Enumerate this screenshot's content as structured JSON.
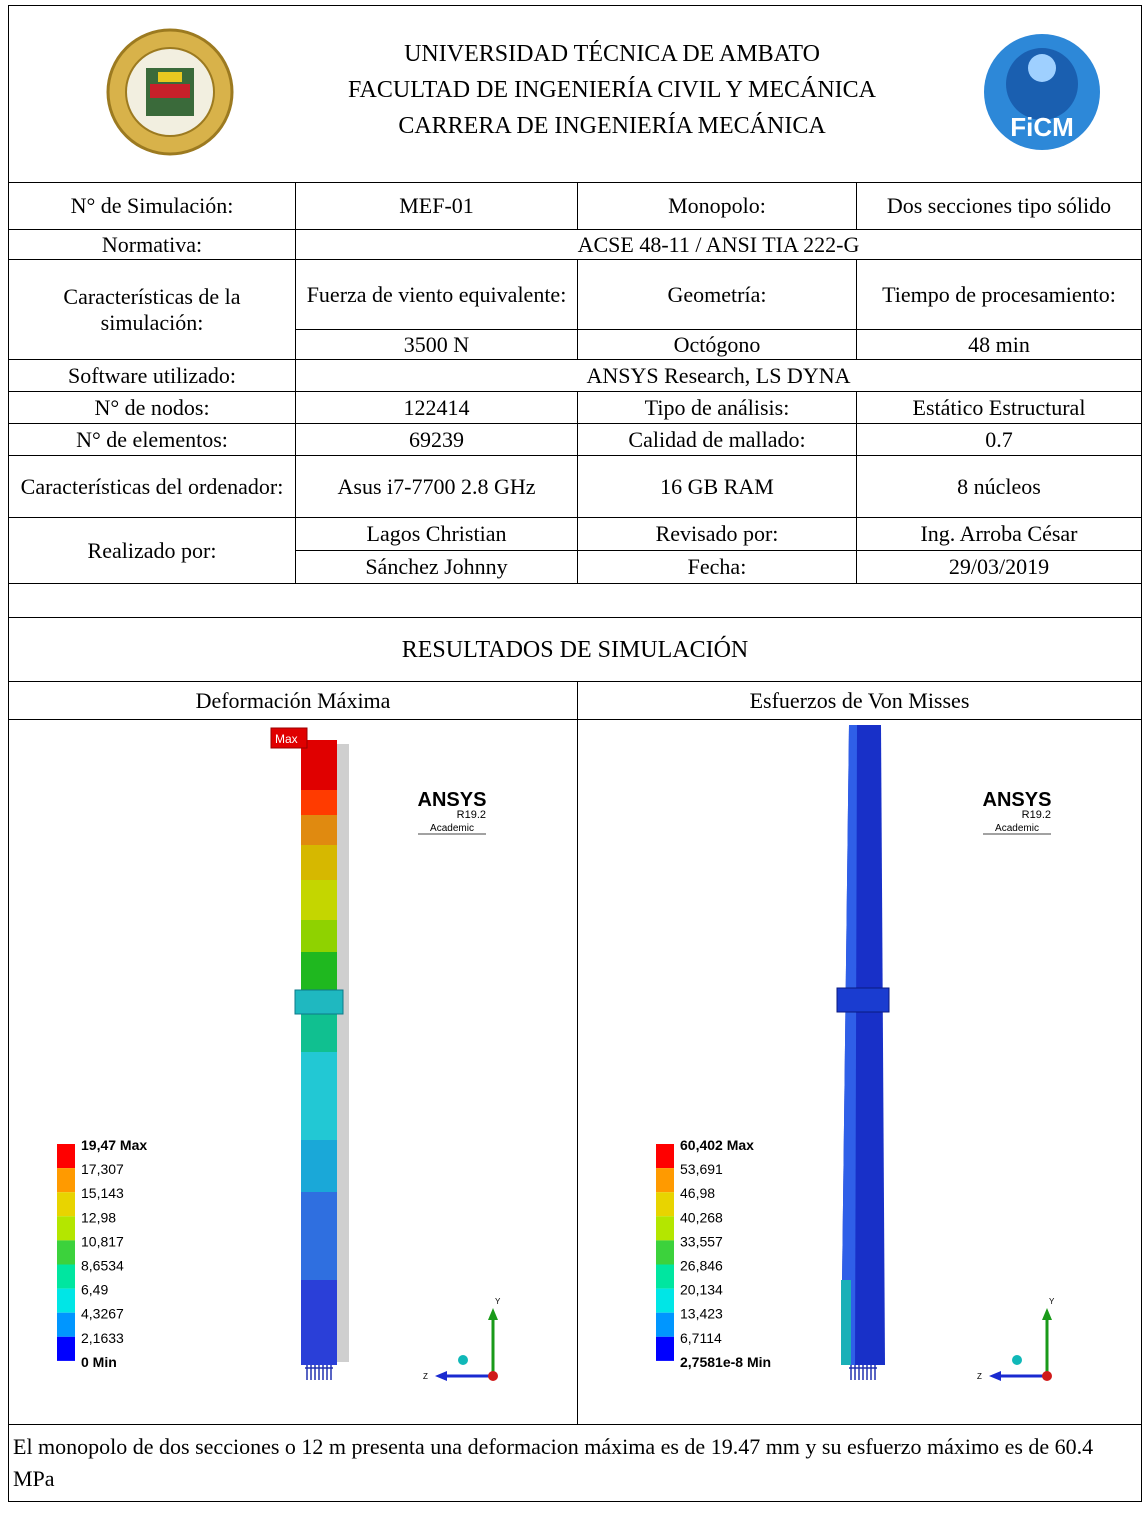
{
  "header": {
    "lines": [
      "UNIVERSIDAD TÉCNICA DE AMBATO",
      "FACULTAD DE INGENIERÍA CIVIL Y MECÁNICA",
      "CARRERA DE INGENIERÍA MECÁNICA"
    ],
    "logo_text": "FiCM"
  },
  "table": {
    "rows": [
      [
        "N° de Simulación:",
        "MEF-01",
        "Monopolo:",
        "Dos secciones tipo sólido"
      ],
      [
        "Normativa:",
        "ACSE 48-11 / ANSI TIA 222-G"
      ],
      [
        "Características de la simulación:",
        "Fuerza de viento equivalente:",
        "Geometría:",
        "Tiempo de procesamiento:"
      ],
      [
        "3500 N",
        "Octógono",
        "48 min"
      ],
      [
        "Software utilizado:",
        "ANSYS Research, LS DYNA"
      ],
      [
        "N° de nodos:",
        "122414",
        "Tipo de análisis:",
        "Estático Estructural"
      ],
      [
        "N° de elementos:",
        "69239",
        "Calidad de mallado:",
        "0.7"
      ],
      [
        "Características del ordenador:",
        "Asus i7-7700 2.8 GHz",
        "16 GB RAM",
        "8 núcleos"
      ],
      [
        "Realizado por:",
        "Lagos Christian",
        "Revisado por:",
        "Ing. Arroba César"
      ],
      [
        "Sánchez Johnny",
        "Fecha:",
        "29/03/2019"
      ]
    ]
  },
  "results": {
    "title": "RESULTADOS DE SIMULACIÓN",
    "panels": [
      {
        "title": "Deformación Máxima",
        "max_tag": "Max",
        "badge": [
          "ANSYS",
          "R19.2",
          "Academic"
        ],
        "axes": [
          "Y",
          "Z"
        ],
        "legend": [
          "19,47 Max",
          "17,307",
          "15,143",
          "12,98",
          "10,817",
          "8,6534",
          "6,49",
          "4,3267",
          "2,1633",
          "0 Min"
        ]
      },
      {
        "title": "Esfuerzos de Von Misses",
        "badge": [
          "ANSYS",
          "R19.2",
          "Academic"
        ],
        "axes": [
          "Y",
          "Z"
        ],
        "legend": [
          "60,402 Max",
          "53,691",
          "46,98",
          "40,268",
          "33,557",
          "26,846",
          "20,134",
          "13,423",
          "6,7114",
          "2,7581e-8 Min"
        ]
      }
    ]
  },
  "footer": "El monopolo de dos secciones o 12 m presenta una deformacion máxima es de 19.47 mm y su esfuerzo máximo es de 60.4 MPa"
}
